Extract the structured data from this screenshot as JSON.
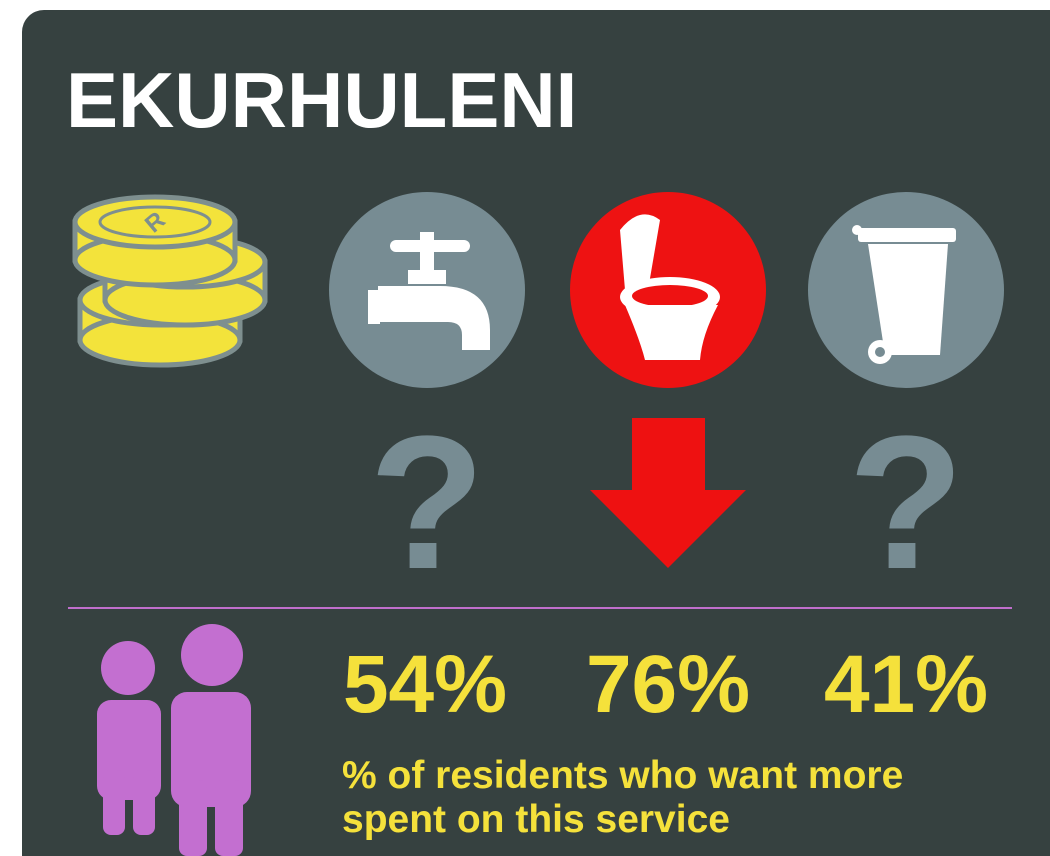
{
  "title": "EKURHULENI",
  "coin_symbol": "R",
  "question_marks": [
    "?",
    "?"
  ],
  "stats": [
    "54%",
    "76%",
    "41%"
  ],
  "caption": [
    "% of residents who want more",
    "spent on this service"
  ]
}
